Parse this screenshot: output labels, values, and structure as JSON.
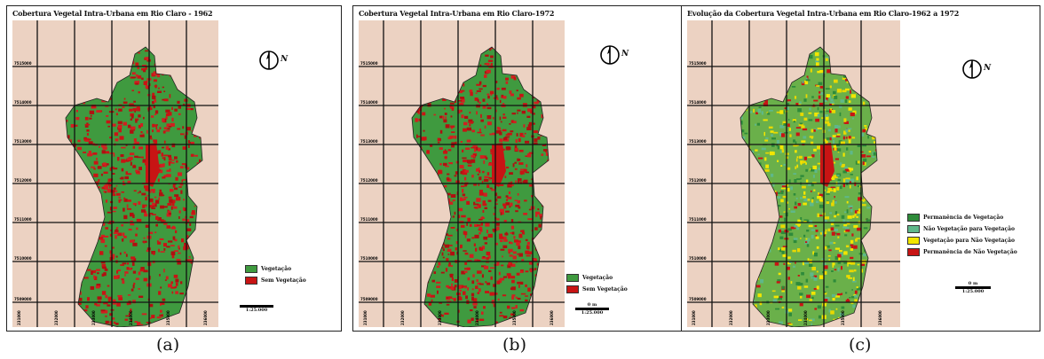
{
  "panels": [
    {
      "title": "Cobertura Vegetal Intra-Urbana em Rio Claro - 1962",
      "north_label": "N",
      "legend": [
        {
          "label": "Vegetação",
          "color": "#3f9a3f"
        },
        {
          "label": "Sem Vegetação",
          "color": "#c81414"
        }
      ],
      "scale_top": "",
      "scale_bottom": "1:25.000",
      "caption": "(a)"
    },
    {
      "title": "Cobertura Vegetal Intra-Urbana em Rio Claro-1972",
      "north_label": "N",
      "legend": [
        {
          "label": "Vegetação",
          "color": "#3f9a3f"
        },
        {
          "label": "Sem Vegetação",
          "color": "#c81414"
        }
      ],
      "scale_top": "0 m",
      "scale_bottom": "1:25.000",
      "caption": "(b)"
    },
    {
      "title": "Evolução da Cobertura Vegetal Intra-Urbana em Rio Claro-1962 a 1972",
      "north_label": "N",
      "legend": [
        {
          "label": "Permanência de Vegetação",
          "color": "#2e8b3a"
        },
        {
          "label": "Não Vegetação para Vegetação",
          "color": "#5fb88a"
        },
        {
          "label": "Vegetação para Não Vegetação",
          "color": "#f2e600"
        },
        {
          "label": "Permanência de Não Vegetação",
          "color": "#c81414"
        }
      ],
      "scale_top": "0 m",
      "scale_bottom": "1:25.000",
      "caption": "(c)"
    }
  ],
  "grid": {
    "y_labels": [
      "7515000",
      "7514000",
      "7513000",
      "7512000",
      "7511000",
      "7510000",
      "7509000"
    ],
    "x_labels": [
      "231000",
      "232000",
      "233000",
      "234000",
      "235000",
      "236000"
    ]
  }
}
